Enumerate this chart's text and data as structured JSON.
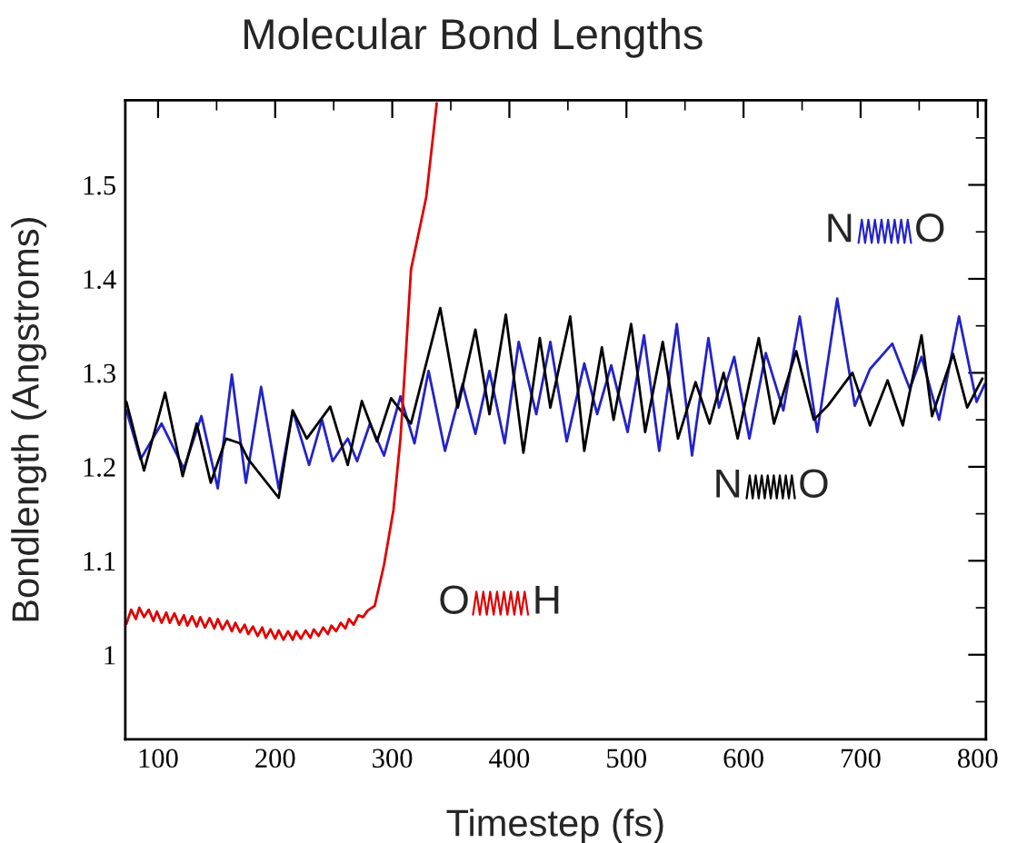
{
  "chart_data": {
    "type": "line",
    "title": "Molecular Bond Lengths",
    "xlabel": "Timestep (fs)",
    "ylabel": "Bondlength (Angstroms)",
    "xlim": [
      72,
      807
    ],
    "ylim": [
      0.91,
      1.59
    ],
    "xticks": [
      100,
      200,
      300,
      400,
      500,
      600,
      700,
      800
    ],
    "yticks": [
      1,
      1.1,
      1.2,
      1.3,
      1.4,
      1.5
    ],
    "grid": false,
    "legend": false,
    "marker": "none",
    "line_style": "solid",
    "annotations": [
      "N",
      "O",
      "N",
      "O",
      "O",
      "H"
    ],
    "series": [
      {
        "color": "#2323c8",
        "x": [
          73,
          85,
          103,
          122,
          137,
          151,
          163,
          175,
          188,
          203,
          215,
          229,
          240,
          249,
          262,
          270,
          281,
          293,
          307,
          319,
          331,
          345,
          360,
          371,
          383,
          396,
          408,
          423,
          435,
          449,
          464,
          475,
          487,
          501,
          515,
          528,
          543,
          556,
          570,
          579,
          592,
          605,
          619,
          634,
          648,
          663,
          680,
          695,
          708,
          727,
          742,
          752,
          767,
          784,
          799,
          806
        ],
        "values": [
          1.26,
          1.208,
          1.246,
          1.198,
          1.254,
          1.177,
          1.298,
          1.183,
          1.285,
          1.177,
          1.26,
          1.202,
          1.25,
          1.206,
          1.23,
          1.206,
          1.246,
          1.212,
          1.275,
          1.225,
          1.302,
          1.217,
          1.288,
          1.235,
          1.302,
          1.225,
          1.333,
          1.256,
          1.333,
          1.227,
          1.31,
          1.256,
          1.308,
          1.237,
          1.34,
          1.217,
          1.352,
          1.212,
          1.337,
          1.263,
          1.317,
          1.23,
          1.321,
          1.26,
          1.36,
          1.237,
          1.379,
          1.265,
          1.304,
          1.331,
          1.283,
          1.317,
          1.25,
          1.36,
          1.269,
          1.288
        ]
      },
      {
        "color": "#000000",
        "x": [
          73,
          88,
          106,
          121,
          133,
          145,
          158,
          170,
          177,
          203,
          215,
          227,
          247,
          262,
          274,
          287,
          299,
          316,
          341,
          356,
          371,
          383,
          397,
          412,
          426,
          435,
          452,
          464,
          479,
          489,
          504,
          516,
          531,
          544,
          559,
          571,
          583,
          595,
          613,
          626,
          645,
          660,
          672,
          693,
          708,
          723,
          736,
          752,
          761,
          779,
          791,
          804
        ],
        "values": [
          1.269,
          1.196,
          1.279,
          1.19,
          1.246,
          1.183,
          1.23,
          1.225,
          1.208,
          1.167,
          1.26,
          1.23,
          1.264,
          1.202,
          1.27,
          1.227,
          1.273,
          1.246,
          1.369,
          1.263,
          1.346,
          1.256,
          1.362,
          1.215,
          1.337,
          1.263,
          1.36,
          1.217,
          1.327,
          1.25,
          1.352,
          1.237,
          1.333,
          1.23,
          1.29,
          1.246,
          1.3,
          1.23,
          1.337,
          1.246,
          1.323,
          1.25,
          1.265,
          1.3,
          1.244,
          1.292,
          1.244,
          1.34,
          1.254,
          1.32,
          1.263,
          1.294
        ]
      },
      {
        "color": "#e00000",
        "x": [
          73,
          77,
          81,
          84,
          88,
          92,
          96,
          99,
          103,
          107,
          110,
          114,
          118,
          122,
          125,
          129,
          133,
          136,
          140,
          144,
          148,
          151,
          155,
          159,
          163,
          166,
          170,
          174,
          177,
          181,
          185,
          189,
          192,
          196,
          200,
          203,
          207,
          211,
          215,
          218,
          222,
          226,
          230,
          233,
          237,
          241,
          245,
          248,
          252,
          256,
          260,
          263,
          267,
          271,
          275,
          279,
          285,
          293,
          301,
          307,
          311,
          316,
          329,
          338
        ],
        "values": [
          1.033,
          1.048,
          1.038,
          1.05,
          1.04,
          1.048,
          1.036,
          1.046,
          1.034,
          1.045,
          1.034,
          1.044,
          1.032,
          1.042,
          1.031,
          1.041,
          1.03,
          1.04,
          1.029,
          1.039,
          1.028,
          1.038,
          1.027,
          1.036,
          1.025,
          1.034,
          1.024,
          1.032,
          1.022,
          1.03,
          1.02,
          1.029,
          1.018,
          1.027,
          1.017,
          1.026,
          1.016,
          1.025,
          1.016,
          1.025,
          1.017,
          1.026,
          1.018,
          1.027,
          1.02,
          1.029,
          1.022,
          1.031,
          1.025,
          1.034,
          1.028,
          1.038,
          1.032,
          1.042,
          1.04,
          1.047,
          1.052,
          1.096,
          1.154,
          1.23,
          1.308,
          1.41,
          1.487,
          1.587
        ]
      }
    ]
  }
}
